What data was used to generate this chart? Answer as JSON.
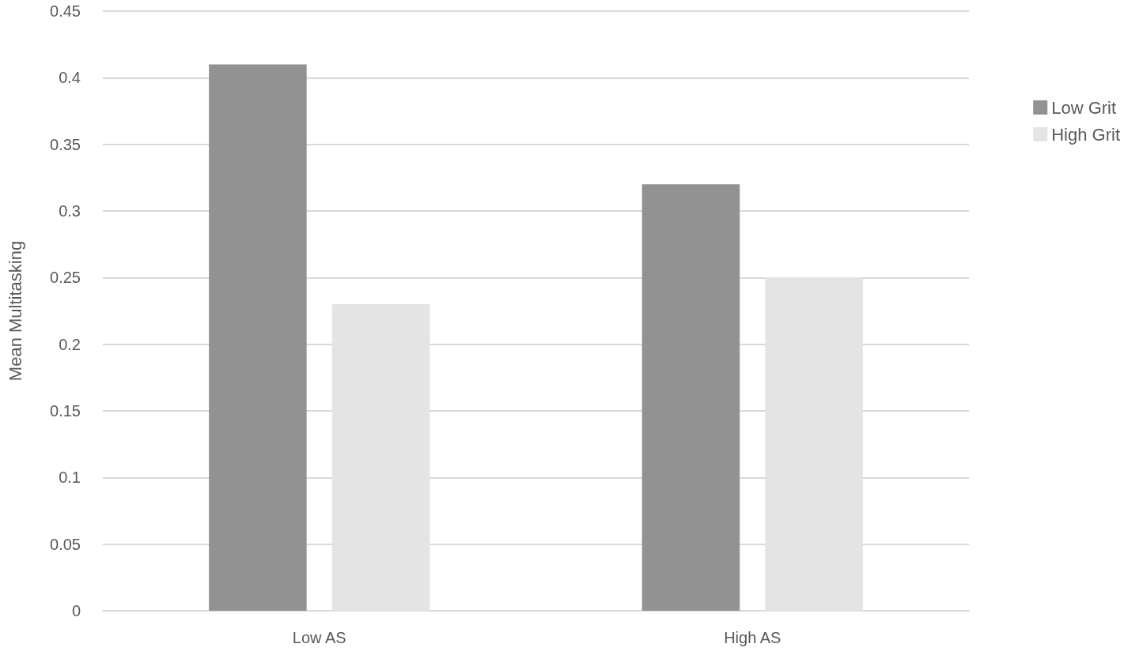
{
  "chart_data": {
    "type": "bar",
    "ylabel": "Mean Multitasking",
    "categories": [
      "Low AS",
      "High AS"
    ],
    "series": [
      {
        "name": "Low Grit",
        "color": "#929292",
        "values": [
          0.41,
          0.32
        ]
      },
      {
        "name": "High Grit",
        "color": "#e5e4e5",
        "values": [
          0.23,
          0.25
        ]
      }
    ],
    "ylim": [
      0,
      0.45
    ],
    "yticks": [
      0,
      0.05,
      0.1,
      0.15,
      0.2,
      0.25,
      0.3,
      0.35,
      0.4,
      0.45
    ],
    "grid": "y",
    "legend": "right"
  }
}
